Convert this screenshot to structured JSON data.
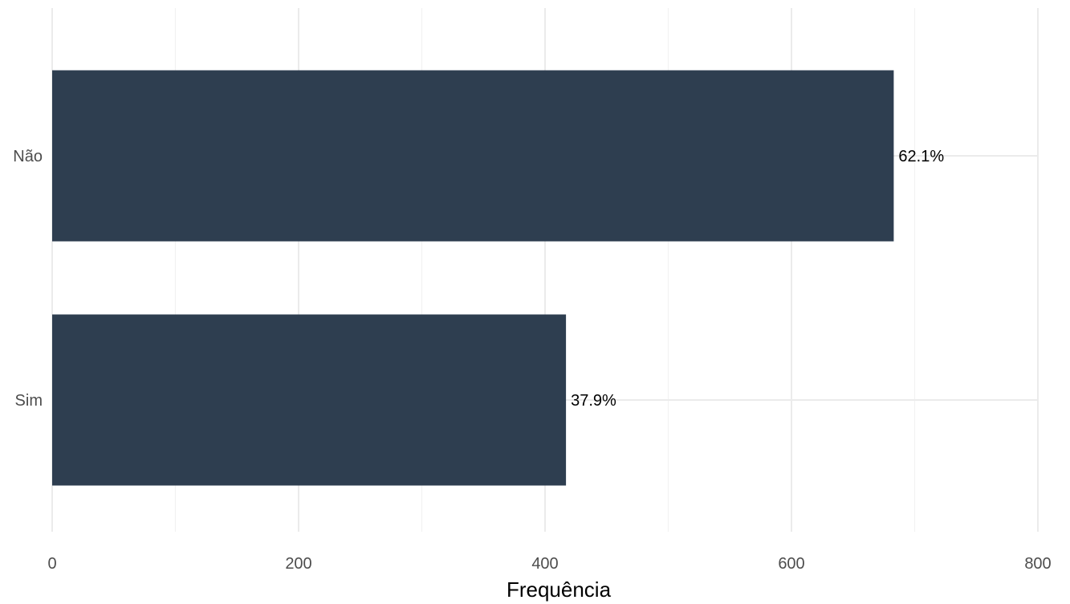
{
  "chart_data": {
    "type": "bar",
    "orientation": "horizontal",
    "categories": [
      "Não",
      "Sim"
    ],
    "values": [
      683,
      417
    ],
    "data_labels": [
      "62.1%",
      "37.9%"
    ],
    "title": "",
    "xlabel": "Frequência",
    "ylabel": "",
    "xlim": [
      0,
      800
    ],
    "x_ticks": [
      0,
      200,
      400,
      600,
      800
    ],
    "x_tick_labels": [
      "0",
      "200",
      "400",
      "600",
      "800"
    ],
    "grid": true,
    "legend": "none",
    "colors": {
      "bar": "#2e3e50",
      "grid": "#ebebeb",
      "tick_text": "#4d4d4d",
      "label_text": "#000000"
    }
  }
}
